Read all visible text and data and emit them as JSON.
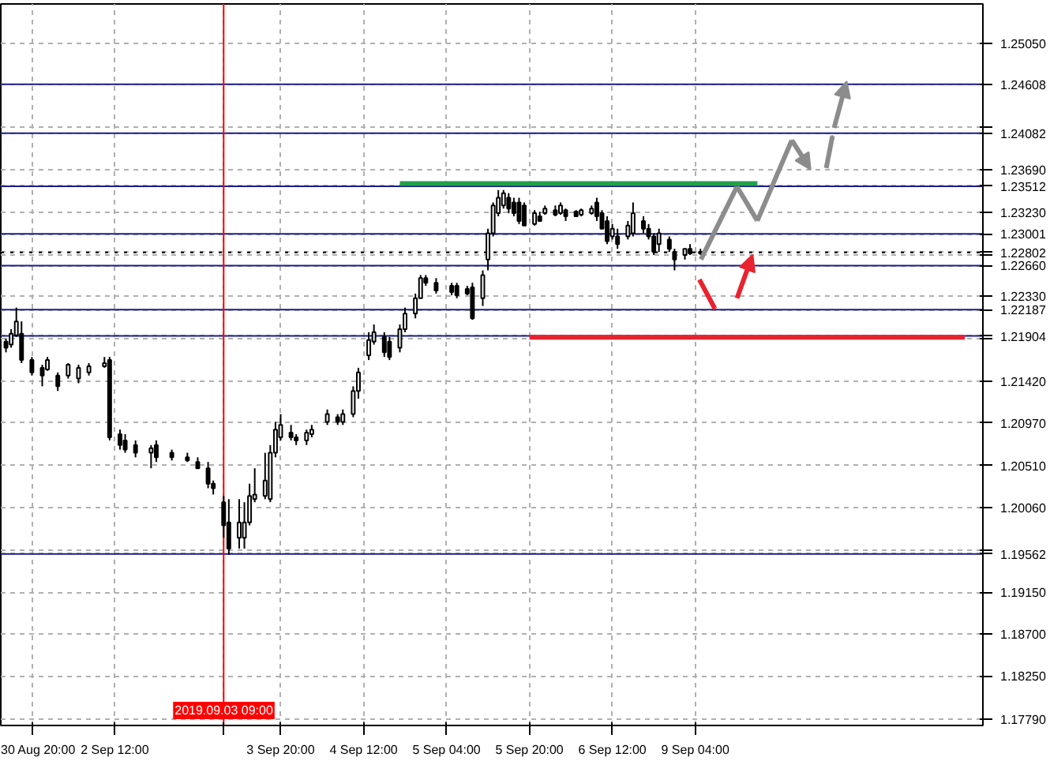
{
  "chart_data": {
    "type": "candlestick",
    "categories": [
      null,
      null,
      null,
      null,
      null,
      "30 Aug 20:00",
      null,
      null,
      null,
      null,
      null,
      null,
      null,
      null,
      null,
      null,
      null,
      null,
      null,
      null,
      null,
      "2 Sep 12:00",
      null,
      null,
      null,
      null,
      null,
      null,
      null,
      null,
      null,
      null,
      null,
      null,
      null,
      null,
      null,
      null,
      null,
      null,
      null,
      null,
      "2019.09.03 09:00",
      null,
      null,
      null,
      null,
      null,
      null,
      null,
      null,
      null,
      null,
      "3 Sep 20:00",
      null,
      null,
      null,
      null,
      null,
      null,
      null,
      null,
      null,
      null,
      null,
      null,
      null,
      null,
      null,
      "4 Sep 12:00",
      null,
      null,
      null,
      null,
      null,
      null,
      null,
      null,
      null,
      null,
      null,
      null,
      null,
      null,
      null,
      "5 Sep 04:00",
      null,
      null,
      null,
      null,
      null,
      null,
      null,
      null,
      null,
      null,
      null,
      null,
      null,
      null,
      null,
      "5 Sep 20:00",
      null,
      null,
      null,
      null,
      null,
      null,
      null,
      null,
      null,
      null,
      null,
      null,
      null,
      null,
      null,
      "6 Sep 12:00",
      null,
      null,
      null,
      null,
      null,
      null,
      null,
      null,
      null,
      null,
      null,
      null,
      null,
      null,
      null,
      "9 Sep 04:00",
      null,
      null,
      null,
      null,
      null,
      null,
      null,
      null,
      null,
      null,
      null,
      null,
      null,
      null,
      null,
      null,
      null,
      null,
      null,
      null,
      null,
      null,
      null,
      null,
      null,
      null,
      null,
      null,
      null,
      null,
      null,
      null,
      null,
      null,
      null,
      null,
      null,
      null,
      null,
      null,
      null,
      null,
      null,
      null,
      null,
      null,
      null,
      null,
      null,
      null,
      null,
      null,
      null,
      null,
      null
    ],
    "ohlc": [
      [
        1.21844,
        1.21877,
        1.21728,
        1.21778
      ],
      [
        1.21811,
        1.21977,
        1.21778,
        1.21927
      ],
      [
        1.21911,
        1.22209,
        1.21894,
        1.2206
      ],
      [
        1.21927,
        1.2206,
        1.21612,
        1.21645
      ],
      null,
      [
        1.21645,
        1.21678,
        1.21479,
        1.21512
      ],
      null,
      [
        1.21562,
        1.21595,
        1.21363,
        1.21479
      ],
      [
        1.21545,
        1.21678,
        1.21529,
        1.21645
      ],
      null,
      [
        1.21479,
        1.21512,
        1.21313,
        1.21363
      ],
      null,
      [
        1.21479,
        1.21612,
        1.21446,
        1.21595
      ],
      null,
      [
        1.21446,
        1.21595,
        1.21396,
        1.21562
      ],
      null,
      [
        1.21512,
        1.21612,
        1.21479,
        1.21579
      ],
      null,
      null,
      [
        1.21579,
        1.21678,
        1.21562,
        1.21612
      ],
      [
        1.21645,
        1.21678,
        1.20782,
        1.20815
      ],
      null,
      [
        1.20849,
        1.20898,
        1.20683,
        1.20732
      ],
      [
        1.20782,
        1.20849,
        1.20649,
        1.20683
      ],
      null,
      [
        1.20732,
        1.20782,
        1.206,
        1.20649
      ],
      null,
      null,
      [
        1.20649,
        1.20732,
        1.20483,
        1.20699
      ],
      [
        1.20732,
        1.20782,
        1.2055,
        1.206
      ],
      null,
      null,
      [
        1.20649,
        1.20683,
        1.20566,
        1.206
      ],
      null,
      null,
      [
        1.206,
        1.20649,
        1.2055,
        1.20566
      ],
      null,
      [
        1.2055,
        1.206,
        1.20483,
        1.20483
      ],
      null,
      [
        1.20483,
        1.2055,
        1.20268,
        1.20317
      ],
      [
        1.20317,
        1.20351,
        1.20201,
        1.20268
      ],
      null,
      [
        1.20118,
        1.20185,
        1.19736,
        1.19869
      ],
      [
        1.19902,
        1.20151,
        1.19553,
        1.1962
      ],
      null,
      [
        1.19736,
        1.20151,
        1.1962,
        1.19902
      ],
      [
        1.19736,
        1.20118,
        1.1962,
        1.19902
      ],
      [
        1.19902,
        1.20317,
        1.19869,
        1.20185
      ],
      [
        1.20151,
        1.20483,
        1.20118,
        1.20201
      ],
      null,
      [
        1.20185,
        1.20649,
        1.20151,
        1.20351
      ],
      [
        1.20151,
        1.20732,
        1.20118,
        1.20649
      ],
      [
        1.20649,
        1.20981,
        1.206,
        1.20898
      ],
      [
        1.20815,
        1.21064,
        1.20782,
        1.20948
      ],
      null,
      [
        1.20865,
        1.20948,
        1.20782,
        1.20815
      ],
      [
        1.20815,
        1.20849,
        1.20732,
        1.20782
      ],
      null,
      [
        1.20782,
        1.20898,
        1.20732,
        1.20865
      ],
      [
        1.20849,
        1.20948,
        1.20815,
        1.20898
      ],
      null,
      null,
      [
        1.20981,
        1.21114,
        1.20948,
        1.21064
      ],
      null,
      [
        1.21031,
        1.21064,
        1.20948,
        1.20981
      ],
      [
        1.20981,
        1.21114,
        1.20948,
        1.21064
      ],
      null,
      [
        1.21064,
        1.21363,
        1.21031,
        1.21313
      ],
      [
        1.21313,
        1.21562,
        1.2123,
        1.21512
      ],
      null,
      [
        1.21695,
        1.21944,
        1.21645,
        1.21861
      ],
      [
        1.21844,
        1.22027,
        1.21811,
        1.21944
      ],
      null,
      [
        1.21894,
        1.21944,
        1.21678,
        1.21728
      ],
      [
        1.21844,
        1.21894,
        1.21645,
        1.21678
      ],
      null,
      [
        1.21778,
        1.22027,
        1.21728,
        1.21977
      ],
      [
        1.21977,
        1.22209,
        1.21944,
        1.22143
      ],
      null,
      [
        1.22143,
        1.22359,
        1.22093,
        1.22309
      ],
      [
        1.22309,
        1.22558,
        1.22309,
        1.22525
      ],
      [
        1.22525,
        1.22558,
        1.22442,
        1.22475
      ],
      null,
      [
        1.22475,
        1.22525,
        1.22359,
        1.22392
      ],
      null,
      null,
      [
        1.22442,
        1.22475,
        1.22342,
        1.22375
      ],
      [
        1.22442,
        1.22475,
        1.22309,
        1.22342
      ],
      null,
      [
        1.22409,
        1.22442,
        1.22342,
        1.22359
      ],
      [
        1.22425,
        1.22475,
        1.22077,
        1.22093
      ],
      null,
      [
        1.22309,
        1.22608,
        1.22226,
        1.22558
      ],
      [
        1.22724,
        1.23056,
        1.22608,
        1.23006
      ],
      [
        1.23006,
        1.23338,
        1.22973,
        1.23305
      ],
      [
        1.23222,
        1.23471,
        1.23189,
        1.23388
      ],
      [
        1.23305,
        1.23471,
        1.23272,
        1.23438
      ],
      [
        1.23388,
        1.23438,
        1.23222,
        1.23272
      ],
      [
        1.23338,
        1.23388,
        1.23189,
        1.23222
      ],
      [
        1.23338,
        1.23388,
        1.23106,
        1.23139
      ],
      [
        1.23305,
        1.23338,
        1.23089,
        1.23089
      ],
      null,
      [
        1.23106,
        1.23255,
        1.23089,
        1.23222
      ],
      [
        1.23189,
        1.23239,
        1.23139,
        1.23139
      ],
      [
        1.23222,
        1.23305,
        1.23205,
        1.23272
      ],
      null,
      [
        1.23255,
        1.23305,
        1.23189,
        1.23205
      ],
      [
        1.23222,
        1.23338,
        1.23205,
        1.23305
      ],
      [
        1.23255,
        1.23272,
        1.23139,
        1.23189
      ],
      null,
      [
        1.23239,
        1.23255,
        1.23189,
        1.23189
      ],
      [
        1.23205,
        1.23272,
        1.23189,
        1.23255
      ],
      null,
      [
        1.23222,
        1.23305,
        1.23205,
        1.23272
      ],
      [
        1.23338,
        1.23388,
        1.23139,
        1.23189
      ],
      [
        1.23222,
        1.23255,
        1.23056,
        1.23056
      ],
      [
        1.23139,
        1.23189,
        1.2289,
        1.22923
      ],
      [
        1.22973,
        1.23106,
        1.2294,
        1.23056
      ],
      [
        1.22973,
        1.23056,
        1.2284,
        1.2289
      ],
      null,
      [
        1.22973,
        1.23139,
        1.2294,
        1.23089
      ],
      [
        1.23006,
        1.23338,
        1.22973,
        1.23222
      ],
      null,
      [
        1.23139,
        1.23189,
        1.23006,
        1.23056
      ],
      [
        1.23056,
        1.23106,
        1.2294,
        1.22973
      ],
      [
        1.22973,
        1.23006,
        1.22774,
        1.22807
      ],
      [
        1.2289,
        1.23056,
        1.22807,
        1.23006
      ],
      null,
      [
        1.2294,
        1.22973,
        1.22807,
        1.2284
      ],
      [
        1.22807,
        1.2284,
        1.22608,
        1.22724
      ],
      null,
      [
        1.22774,
        1.2284,
        1.22724,
        1.2284
      ],
      [
        1.2284,
        1.2289,
        1.22774,
        1.2279
      ],
      null,
      [
        1.22807,
        1.2284,
        1.22774,
        1.2279
      ],
      null,
      null,
      null,
      null,
      null,
      null,
      null,
      null,
      null,
      null,
      null,
      null,
      null,
      null,
      null,
      null,
      null,
      null,
      null,
      null,
      null,
      null,
      null,
      null,
      null,
      null,
      null,
      null,
      null,
      null,
      null,
      null,
      null,
      null,
      null,
      null,
      null,
      null,
      null,
      null,
      null,
      null,
      null,
      null,
      null,
      null,
      null,
      null,
      null,
      null,
      null,
      null,
      null,
      null
    ],
    "series": [
      {
        "type": "line",
        "color": "#22a04a",
        "values": [
          null,
          null,
          null,
          null,
          null,
          null,
          null,
          null,
          null,
          null,
          null,
          null,
          null,
          null,
          null,
          null,
          null,
          null,
          null,
          null,
          null,
          null,
          null,
          null,
          null,
          null,
          null,
          null,
          null,
          null,
          null,
          null,
          null,
          null,
          null,
          null,
          null,
          null,
          null,
          null,
          null,
          null,
          null,
          null,
          null,
          null,
          null,
          null,
          null,
          null,
          null,
          null,
          null,
          null,
          null,
          null,
          null,
          null,
          null,
          null,
          null,
          null,
          null,
          null,
          null,
          null,
          null,
          null,
          null,
          null,
          null,
          null,
          null,
          null,
          null,
          null,
          1.2354,
          1.2354,
          1.2354,
          1.2354,
          1.2354,
          1.2354,
          1.2354,
          1.2354,
          1.2354,
          1.2354,
          1.2354,
          1.2354,
          1.2354,
          1.2354,
          1.2354,
          1.2354,
          1.2354,
          1.2354,
          1.2354,
          1.2354,
          1.2354,
          1.2354,
          1.2354,
          1.2354,
          1.2354,
          1.2354,
          1.2354,
          1.2354,
          1.2354,
          1.2354,
          1.2354,
          1.2354,
          1.2354,
          1.2354,
          1.2354,
          1.2354,
          1.2354,
          1.2354,
          1.2354,
          1.2354,
          1.2354,
          1.2354,
          1.2354,
          1.2354,
          1.2354,
          1.2354,
          1.2354,
          1.2354,
          1.2354,
          1.2354,
          1.2354,
          1.2354,
          1.2354,
          1.2354,
          1.2354,
          1.2354,
          1.2354,
          1.2354,
          1.2354,
          1.2354,
          1.2354,
          1.2354,
          1.2354,
          1.2354,
          1.2354,
          1.2354,
          1.2354,
          1.2354,
          1.2354,
          1.2354,
          null,
          null,
          null,
          null,
          null,
          null,
          null,
          null,
          null,
          null,
          null,
          null,
          null,
          null,
          null,
          null,
          null,
          null,
          null,
          null,
          null,
          null,
          null,
          null,
          null,
          null,
          null,
          null,
          null,
          null,
          null,
          null,
          null,
          null,
          null,
          null,
          null,
          null,
          null,
          null,
          null,
          null,
          null
        ]
      },
      {
        "type": "line",
        "color": "#e8232f",
        "values": [
          null,
          null,
          null,
          null,
          null,
          null,
          null,
          null,
          null,
          null,
          null,
          null,
          null,
          null,
          null,
          null,
          null,
          null,
          null,
          null,
          null,
          null,
          null,
          null,
          null,
          null,
          null,
          null,
          null,
          null,
          null,
          null,
          null,
          null,
          null,
          null,
          null,
          null,
          null,
          null,
          null,
          null,
          null,
          null,
          null,
          null,
          null,
          null,
          null,
          null,
          null,
          null,
          null,
          null,
          null,
          null,
          null,
          null,
          null,
          null,
          null,
          null,
          null,
          null,
          null,
          null,
          null,
          null,
          null,
          null,
          null,
          null,
          null,
          null,
          null,
          null,
          null,
          null,
          null,
          null,
          null,
          null,
          null,
          null,
          null,
          null,
          null,
          null,
          null,
          null,
          null,
          null,
          null,
          null,
          null,
          null,
          null,
          null,
          null,
          null,
          null,
          1.2189,
          1.2189,
          1.2189,
          1.2189,
          1.2189,
          1.2189,
          1.2189,
          1.2189,
          1.2189,
          1.2189,
          1.2189,
          1.2189,
          1.2189,
          1.2189,
          1.2189,
          1.2189,
          1.2189,
          1.2189,
          1.2189,
          1.2189,
          1.2189,
          1.2189,
          1.2189,
          1.2189,
          1.2189,
          1.2189,
          1.2189,
          1.2189,
          1.2189,
          1.2189,
          1.2189,
          1.2189,
          1.2189,
          1.2189,
          1.2189,
          1.2189,
          1.2189,
          1.2189,
          1.2189,
          1.2189,
          1.2189,
          1.2189,
          1.2189,
          1.2189,
          1.2189,
          1.2189,
          1.2189,
          1.2189,
          1.2189,
          1.2189,
          1.2189,
          1.2189,
          1.2189,
          1.2189,
          1.2189,
          1.2189,
          1.2189,
          1.2189,
          1.2189,
          1.2189,
          1.2189,
          1.2189,
          1.2189,
          1.2189,
          1.2189,
          1.2189,
          1.2189,
          1.2189,
          1.2189,
          1.2189,
          1.2189,
          1.2189,
          1.2189,
          1.2189,
          1.2189,
          1.2189,
          1.2189,
          1.2189,
          1.2189,
          1.2189,
          1.2189,
          1.2189,
          1.2189,
          1.2189,
          1.2189,
          null,
          null,
          null
        ]
      }
    ],
    "ylim": [
      1.1772,
      1.2547
    ],
    "yticks": [
      {
        "value": 1.2505,
        "label": "1.25050"
      },
      {
        "value": 1.246,
        "label": null
      },
      {
        "value": 1.2414,
        "label": null
      },
      {
        "value": 1.2369,
        "label": "1.23690"
      },
      {
        "value": 1.2323,
        "label": "1.23230"
      },
      {
        "value": 1.2278,
        "label": null
      },
      {
        "value": 1.2233,
        "label": "1.22330"
      },
      {
        "value": 1.2187,
        "label": null
      },
      {
        "value": 1.2142,
        "label": "1.21420"
      },
      {
        "value": 1.2097,
        "label": "1.20970"
      },
      {
        "value": 1.2051,
        "label": "1.20510"
      },
      {
        "value": 1.2006,
        "label": "1.20060"
      },
      {
        "value": 1.196,
        "label": null
      },
      {
        "value": 1.1915,
        "label": "1.19150"
      },
      {
        "value": 1.187,
        "label": "1.18700"
      },
      {
        "value": 1.1825,
        "label": "1.18250"
      },
      {
        "value": 1.1779,
        "label": "1.17790"
      }
    ],
    "ref_lines": [
      {
        "axis": "y",
        "value": 1.24608,
        "label": "1.24608",
        "color": "#1c1c8c"
      },
      {
        "axis": "y",
        "value": 1.24082,
        "label": "1.24082",
        "color": "#1c1c8c"
      },
      {
        "axis": "y",
        "value": 1.23512,
        "label": "1.23512",
        "color": "#1c1c8c"
      },
      {
        "axis": "y",
        "value": 1.23001,
        "label": "1.23001",
        "color": "#1c1c8c"
      },
      {
        "axis": "y",
        "value": 1.22802,
        "label": "1.22802",
        "color": "#000000",
        "line_style": "dotted"
      },
      {
        "axis": "y",
        "value": 1.2266,
        "label": "1.22660",
        "color": "#1c1c8c"
      },
      {
        "axis": "y",
        "value": 1.22187,
        "label": "1.22187",
        "color": "#1c1c8c"
      },
      {
        "axis": "y",
        "value": 1.21904,
        "label": "1.21904",
        "color": "#1c1c8c"
      },
      {
        "axis": "y",
        "value": 1.19562,
        "label": "1.19562",
        "color": "#1c1c8c"
      },
      {
        "axis": "x",
        "value": "2019.09.03 09:00",
        "color": "#ff0000"
      }
    ],
    "grid": true
  }
}
